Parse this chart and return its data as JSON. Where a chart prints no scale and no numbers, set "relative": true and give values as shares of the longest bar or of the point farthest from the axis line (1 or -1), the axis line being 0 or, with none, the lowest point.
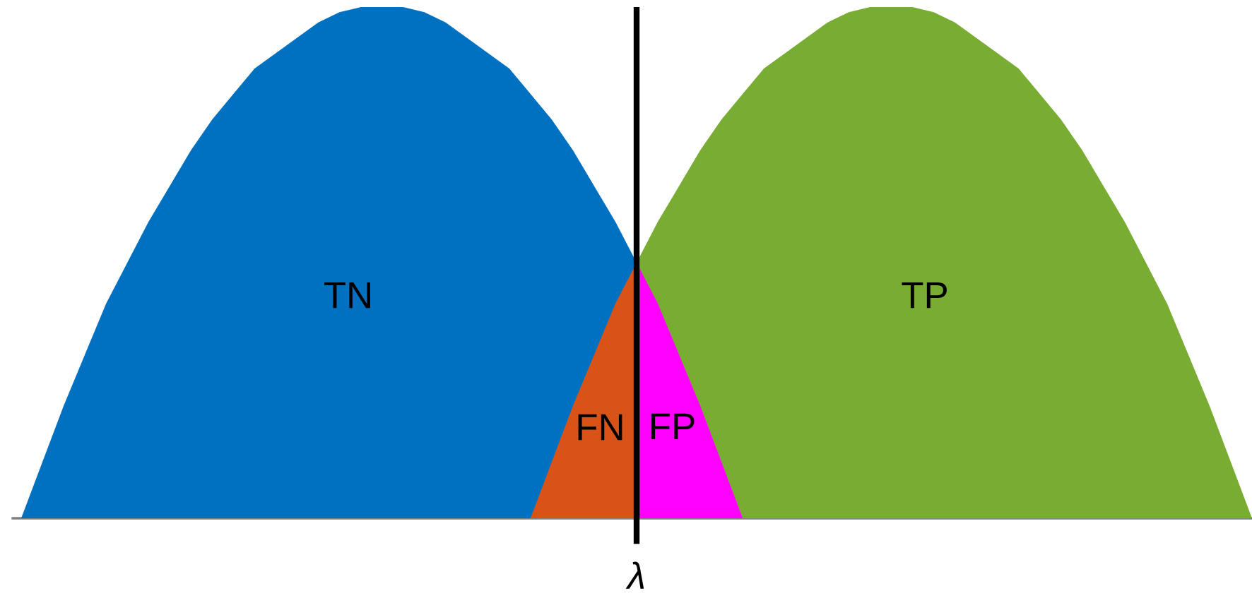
{
  "chart_data": {
    "type": "area",
    "relative": true,
    "categories": [
      null,
      null,
      null,
      null,
      null,
      null,
      null,
      null,
      null,
      null,
      null,
      null,
      null,
      null,
      null,
      null,
      null,
      null,
      null,
      null,
      null,
      null,
      null,
      null,
      null,
      null,
      null,
      null,
      null,
      null,
      null,
      null,
      null,
      null,
      null,
      null,
      null,
      null,
      null,
      null,
      null,
      null,
      null,
      null,
      null,
      null,
      null,
      null,
      null,
      null,
      null,
      null,
      null,
      null,
      null,
      null,
      null,
      null,
      null
    ],
    "series": [
      {
        "name": "TN",
        "color": "#0070c0",
        "values": [
          0,
          0.11,
          0.22,
          0.32,
          0.42,
          0.5,
          0.58,
          0.65,
          0.72,
          0.78,
          0.83,
          0.88,
          0.91,
          0.94,
          0.97,
          0.99,
          1,
          1,
          1,
          0.99,
          0.97,
          0.94,
          0.91,
          0.88,
          0.83,
          0.78,
          0.72,
          0.65,
          0.58,
          0.5,
          null,
          null,
          null,
          null,
          null,
          null,
          null,
          null,
          null,
          null,
          null,
          null,
          null,
          null,
          null,
          null,
          null,
          null,
          null,
          null,
          null,
          null,
          null,
          null,
          null,
          null,
          null,
          null,
          null
        ]
      },
      {
        "name": "TP",
        "color": "#79ac33",
        "values": [
          null,
          null,
          null,
          null,
          null,
          null,
          null,
          null,
          null,
          null,
          null,
          null,
          null,
          null,
          null,
          null,
          null,
          null,
          null,
          null,
          null,
          null,
          null,
          null,
          null,
          null,
          null,
          null,
          null,
          0.5,
          0.58,
          0.65,
          0.72,
          0.78,
          0.83,
          0.88,
          0.91,
          0.94,
          0.97,
          0.99,
          1,
          1,
          1,
          0.99,
          0.97,
          0.94,
          0.91,
          0.88,
          0.83,
          0.78,
          0.72,
          0.65,
          0.58,
          0.5,
          0.42,
          0.32,
          0.22,
          0.11,
          0
        ]
      },
      {
        "name": "FN",
        "color": "#d95319",
        "values": [
          null,
          null,
          null,
          null,
          null,
          null,
          null,
          null,
          null,
          null,
          null,
          null,
          null,
          null,
          null,
          null,
          null,
          null,
          null,
          null,
          null,
          null,
          null,
          null,
          0,
          0.11,
          0.22,
          0.32,
          0.42,
          0.5,
          null,
          null,
          null,
          null,
          null,
          null,
          null,
          null,
          null,
          null,
          null,
          null,
          null,
          null,
          null,
          null,
          null,
          null,
          null,
          null,
          null,
          null,
          null,
          null,
          null,
          null,
          null,
          null,
          null
        ]
      },
      {
        "name": "FP",
        "color": "#ff00ff",
        "values": [
          null,
          null,
          null,
          null,
          null,
          null,
          null,
          null,
          null,
          null,
          null,
          null,
          null,
          null,
          null,
          null,
          null,
          null,
          null,
          null,
          null,
          null,
          null,
          null,
          null,
          null,
          null,
          null,
          null,
          0.5,
          0.42,
          0.32,
          0.22,
          0.11,
          0,
          null,
          null,
          null,
          null,
          null,
          null,
          null,
          null,
          null,
          null,
          null,
          null,
          null,
          null,
          null,
          null,
          null,
          null,
          null,
          null,
          null,
          null,
          null,
          null
        ]
      }
    ],
    "annotations": [
      "λ"
    ]
  }
}
